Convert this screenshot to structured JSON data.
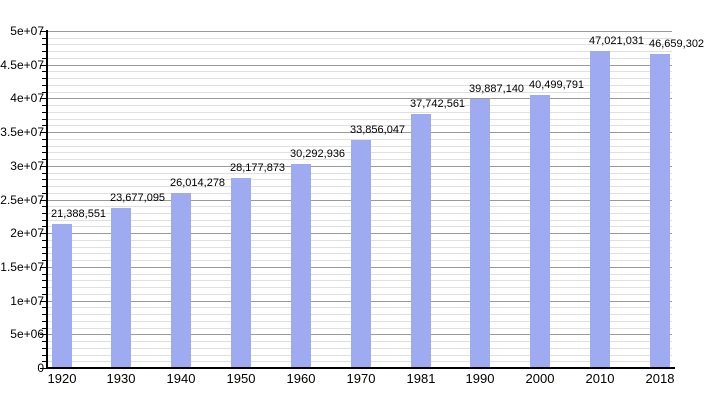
{
  "chart_data": {
    "type": "bar",
    "title": "",
    "xlabel": "",
    "ylabel": "",
    "categories": [
      "1920",
      "1930",
      "1940",
      "1950",
      "1960",
      "1970",
      "1981",
      "1990",
      "2000",
      "2010",
      "2018"
    ],
    "values": [
      21388551,
      23677095,
      26014278,
      28177873,
      30292936,
      33856047,
      37742561,
      39887140,
      40499791,
      47021031,
      46659302
    ],
    "value_labels": [
      "21,388,551",
      "23,677,095",
      "26,014,278",
      "28,177,873",
      "30,292,936",
      "33,856,047",
      "37,742,561",
      "39,887,140",
      "40,499,791",
      "47,021,031",
      "46,659,302"
    ],
    "ylim": [
      0,
      50000000
    ],
    "ymajor_step": 5000000,
    "yminor_step": 1000000,
    "ytick_labels": [
      "0",
      "5e+06",
      "1e+07",
      "1.5e+07",
      "2e+07",
      "2.5e+07",
      "3e+07",
      "3.5e+07",
      "4e+07",
      "4.5e+07",
      "5e+07"
    ],
    "grid": "horizontal major+minor",
    "legend": "none",
    "colors": {
      "background": "#ffffff",
      "bar_fill": "#9fabf0",
      "major_grid": "#9a9a9a",
      "minor_grid": "#e0e0e0",
      "axis": "#000000",
      "text": "#000000"
    }
  }
}
